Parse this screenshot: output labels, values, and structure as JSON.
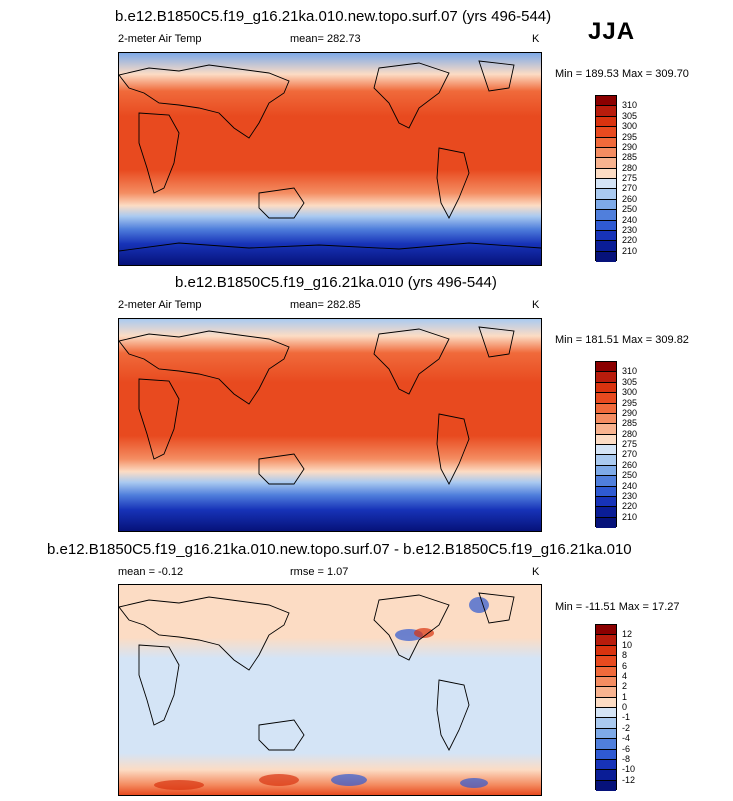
{
  "season": "JJA",
  "panels": [
    {
      "title": "b.e12.B1850C5.f19_g16.21ka.010.new.topo.surf.07 (yrs 496-544)",
      "variable": "2-meter Air Temp",
      "mean_label": "mean= 282.73",
      "units": "K",
      "minmax": "Min = 189.53 Max = 309.70",
      "colorbar_labels": [
        "310",
        "305",
        "300",
        "295",
        "290",
        "285",
        "280",
        "275",
        "270",
        "260",
        "250",
        "240",
        "230",
        "220",
        "210"
      ],
      "colorbar_colors": [
        "#8b0000",
        "#b81c0c",
        "#d9330f",
        "#e84a1f",
        "#f06a3b",
        "#f48d62",
        "#f8b38f",
        "#fcdcc4",
        "#d4e4f6",
        "#aacaf0",
        "#7eaae8",
        "#507fdc",
        "#2f5ad2",
        "#1733b8",
        "#0a1d96",
        "#06127a"
      ]
    },
    {
      "title": "b.e12.B1850C5.f19_g16.21ka.010 (yrs 496-544)",
      "variable": "2-meter Air Temp",
      "mean_label": "mean= 282.85",
      "units": "K",
      "minmax": "Min = 181.51 Max = 309.82",
      "colorbar_labels": [
        "310",
        "305",
        "300",
        "295",
        "290",
        "285",
        "280",
        "275",
        "270",
        "260",
        "250",
        "240",
        "230",
        "220",
        "210"
      ],
      "colorbar_colors": [
        "#8b0000",
        "#b81c0c",
        "#d9330f",
        "#e84a1f",
        "#f06a3b",
        "#f48d62",
        "#f8b38f",
        "#fcdcc4",
        "#d4e4f6",
        "#aacaf0",
        "#7eaae8",
        "#507fdc",
        "#2f5ad2",
        "#1733b8",
        "#0a1d96",
        "#06127a"
      ]
    },
    {
      "title": "b.e12.B1850C5.f19_g16.21ka.010.new.topo.surf.07 - b.e12.B1850C5.f19_g16.21ka.010",
      "variable": "mean =  -0.12",
      "mean_label": "rmse =   1.07",
      "units": "K",
      "minmax": "Min = -11.51 Max =  17.27",
      "colorbar_labels": [
        "12",
        "10",
        "8",
        "6",
        "4",
        "2",
        "1",
        "0",
        "-1",
        "-2",
        "-4",
        "-6",
        "-8",
        "-10",
        "-12"
      ],
      "colorbar_colors": [
        "#8b0000",
        "#b81c0c",
        "#d9330f",
        "#e84a1f",
        "#f06a3b",
        "#f48d62",
        "#f8b38f",
        "#fcdcc4",
        "#d4e4f6",
        "#aacaf0",
        "#7eaae8",
        "#507fdc",
        "#2f5ad2",
        "#1733b8",
        "#0a1d96",
        "#06127a"
      ]
    }
  ],
  "chart_data": [
    {
      "type": "heatmap",
      "title": "b.e12.B1850C5.f19_g16.21ka.010.new.topo.surf.07 (yrs 496-544)",
      "variable": "2-meter Air Temp",
      "units": "K",
      "season": "JJA",
      "mean": 282.73,
      "min": 189.53,
      "max": 309.7,
      "levels": [
        210,
        220,
        230,
        240,
        250,
        260,
        270,
        275,
        280,
        285,
        290,
        295,
        300,
        305,
        310
      ]
    },
    {
      "type": "heatmap",
      "title": "b.e12.B1850C5.f19_g16.21ka.010 (yrs 496-544)",
      "variable": "2-meter Air Temp",
      "units": "K",
      "season": "JJA",
      "mean": 282.85,
      "min": 181.51,
      "max": 309.82,
      "levels": [
        210,
        220,
        230,
        240,
        250,
        260,
        270,
        275,
        280,
        285,
        290,
        295,
        300,
        305,
        310
      ]
    },
    {
      "type": "heatmap",
      "title": "b.e12.B1850C5.f19_g16.21ka.010.new.topo.surf.07 - b.e12.B1850C5.f19_g16.21ka.010",
      "units": "K",
      "season": "JJA",
      "mean": -0.12,
      "rmse": 1.07,
      "min": -11.51,
      "max": 17.27,
      "levels": [
        -12,
        -10,
        -8,
        -6,
        -4,
        -2,
        -1,
        0,
        1,
        2,
        4,
        6,
        8,
        10,
        12
      ]
    }
  ]
}
